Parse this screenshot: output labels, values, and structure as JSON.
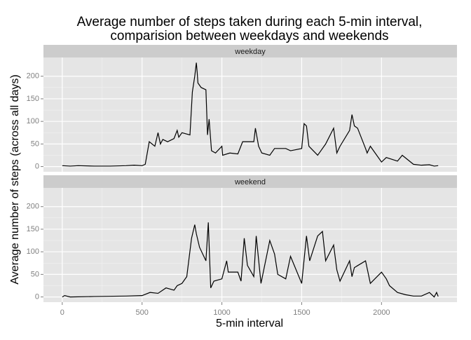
{
  "chart_data": {
    "type": "line",
    "title": [
      "Average number of steps taken during each 5-min interval,",
      "comparision between weekdays and weekends"
    ],
    "xlabel": "5-min interval",
    "ylabel": "Average number of steps (across all days)",
    "color": "#000000",
    "grid": true,
    "xlim": [
      -117.75,
      2472.75
    ],
    "xticks": [
      0,
      500,
      1000,
      1500,
      2000
    ],
    "ylim": [
      -11.5,
      241.5
    ],
    "yticks": [
      0,
      50,
      100,
      150,
      200
    ],
    "series": [
      {
        "name": "weekday",
        "x": [
          0,
          50,
          100,
          200,
          300,
          400,
          450,
          500,
          520,
          545,
          580,
          600,
          615,
          630,
          660,
          700,
          720,
          730,
          750,
          800,
          815,
          830,
          840,
          845,
          850,
          870,
          900,
          910,
          920,
          935,
          960,
          1000,
          1005,
          1050,
          1100,
          1130,
          1150,
          1200,
          1210,
          1230,
          1250,
          1300,
          1330,
          1400,
          1430,
          1500,
          1515,
          1530,
          1545,
          1600,
          1620,
          1650,
          1700,
          1720,
          1740,
          1800,
          1815,
          1830,
          1850,
          1900,
          1910,
          1930,
          2000,
          2030,
          2100,
          2130,
          2200,
          2250,
          2300,
          2330,
          2355
        ],
        "values": [
          2,
          1,
          2,
          1,
          1,
          2,
          3,
          2,
          5,
          55,
          45,
          75,
          50,
          60,
          55,
          62,
          80,
          65,
          75,
          70,
          165,
          200,
          230,
          210,
          185,
          175,
          170,
          70,
          105,
          35,
          30,
          45,
          25,
          30,
          28,
          55,
          55,
          55,
          85,
          45,
          30,
          25,
          40,
          40,
          35,
          40,
          95,
          90,
          45,
          25,
          35,
          50,
          85,
          30,
          45,
          80,
          115,
          90,
          85,
          40,
          30,
          45,
          10,
          20,
          12,
          25,
          5,
          3,
          4,
          1,
          2
        ]
      },
      {
        "name": "weekend",
        "x": [
          0,
          15,
          50,
          200,
          400,
          500,
          550,
          600,
          650,
          700,
          720,
          750,
          780,
          810,
          830,
          840,
          860,
          900,
          915,
          930,
          950,
          1000,
          1030,
          1040,
          1100,
          1120,
          1140,
          1160,
          1200,
          1215,
          1245,
          1300,
          1330,
          1350,
          1400,
          1430,
          1500,
          1530,
          1550,
          1600,
          1630,
          1650,
          1700,
          1720,
          1740,
          1800,
          1815,
          1830,
          1900,
          1930,
          2000,
          2030,
          2050,
          2100,
          2150,
          2200,
          2250,
          2300,
          2330,
          2345,
          2355
        ],
        "values": [
          0,
          3,
          0,
          1,
          2,
          3,
          10,
          8,
          20,
          15,
          25,
          30,
          45,
          130,
          160,
          140,
          110,
          80,
          165,
          20,
          35,
          40,
          80,
          55,
          55,
          35,
          130,
          70,
          45,
          135,
          30,
          125,
          95,
          50,
          40,
          90,
          30,
          135,
          80,
          135,
          145,
          80,
          115,
          60,
          35,
          80,
          45,
          65,
          80,
          30,
          55,
          40,
          25,
          10,
          5,
          2,
          2,
          10,
          0,
          10,
          1
        ]
      }
    ]
  }
}
